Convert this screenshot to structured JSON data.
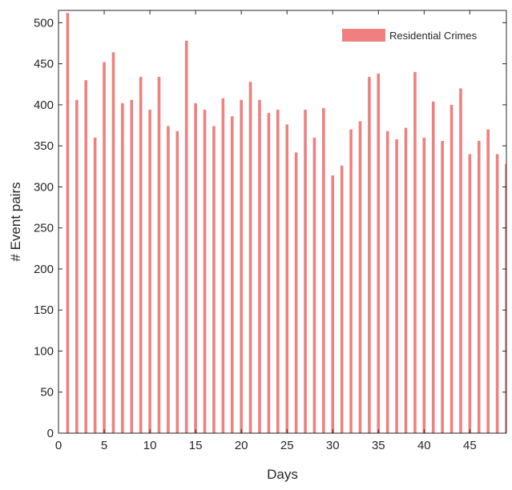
{
  "chart_data": {
    "type": "bar",
    "title": "",
    "xlabel": "Days",
    "ylabel": "# Event pairs",
    "xlim": [
      0,
      49
    ],
    "ylim": [
      0,
      515
    ],
    "xticks": [
      0,
      5,
      10,
      15,
      20,
      25,
      30,
      35,
      40,
      45
    ],
    "yticks": [
      0,
      50,
      100,
      150,
      200,
      250,
      300,
      350,
      400,
      450,
      500
    ],
    "grid": false,
    "legend_position": "top-right",
    "series": [
      {
        "name": "Residential Crimes",
        "color": "#f08080",
        "x": [
          1,
          2,
          3,
          4,
          5,
          6,
          7,
          8,
          9,
          10,
          11,
          12,
          13,
          14,
          15,
          16,
          17,
          18,
          19,
          20,
          21,
          22,
          23,
          24,
          25,
          26,
          27,
          28,
          29,
          30,
          31,
          32,
          33,
          34,
          35,
          36,
          37,
          38,
          39,
          40,
          41,
          42,
          43,
          44,
          45,
          46,
          47,
          48,
          49
        ],
        "values": [
          512,
          406,
          430,
          360,
          452,
          464,
          402,
          406,
          434,
          394,
          434,
          374,
          368,
          478,
          402,
          394,
          374,
          408,
          386,
          406,
          428,
          406,
          390,
          394,
          376,
          342,
          394,
          360,
          396,
          314,
          326,
          370,
          380,
          434,
          438,
          368,
          358,
          372,
          440,
          360,
          404,
          356,
          400,
          420,
          340,
          356,
          370,
          340,
          328
        ]
      }
    ]
  }
}
